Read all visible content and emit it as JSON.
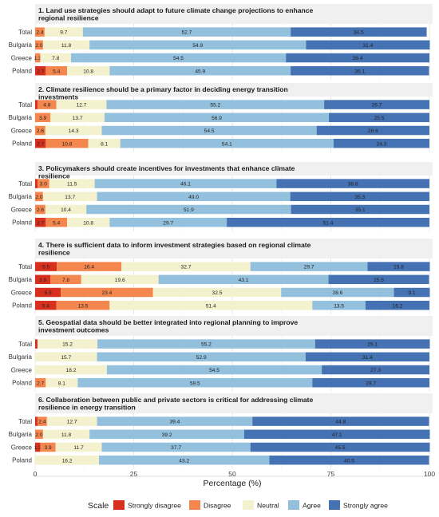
{
  "chart_data": {
    "type": "bar",
    "orientation": "horizontal",
    "stacked": true,
    "xlabel": "Percentage (%)",
    "xlim": [
      0,
      100
    ],
    "xticks": [
      "0",
      "25",
      "50",
      "75",
      "100"
    ],
    "legend": {
      "title": "Scale",
      "position": "bottom",
      "items": [
        "Strongly disagree",
        "Disagree",
        "Neutral",
        "Agree",
        "Strongly agree"
      ]
    },
    "colors": {
      "Strongly disagree": "#d7301f",
      "Disagree": "#f4874e",
      "Neutral": "#f4f1cf",
      "Agree": "#93c0dd",
      "Strongly agree": "#4472b3"
    },
    "grid": true,
    "panels": [
      {
        "title": "1. Land use strategies should adapt to future climate change projections to enhance regional resilience",
        "rows": [
          {
            "category": "Total",
            "values": [
              0.0,
              2.4,
              9.7,
              52.7,
              34.5
            ],
            "labels": [
              "",
              "2.4",
              "9.7",
              "52.7",
              "34.5"
            ]
          },
          {
            "category": "Bulgaria",
            "values": [
              0.0,
              2.0,
              11.8,
              54.9,
              31.4
            ],
            "labels": [
              "",
              "2.0",
              "11.8",
              "54.9",
              "31.4"
            ]
          },
          {
            "category": "Greece",
            "values": [
              0.0,
              1.3,
              7.8,
              54.5,
              36.4
            ],
            "labels": [
              "",
              "1.3",
              "7.8",
              "54.5",
              "36.4"
            ]
          },
          {
            "category": "Poland",
            "values": [
              2.7,
              5.4,
              10.8,
              45.9,
              35.1
            ],
            "labels": [
              "2.7",
              "5.4",
              "10.8",
              "45.9",
              "35.1"
            ]
          }
        ]
      },
      {
        "title": "2. Climate resilience should be a primary factor in deciding energy transition investments",
        "rows": [
          {
            "category": "Total",
            "values": [
              0.6,
              4.8,
              12.7,
              55.2,
              26.7
            ],
            "labels": [
              "",
              "4.8",
              "12.7",
              "55.2",
              "26.7"
            ]
          },
          {
            "category": "Bulgaria",
            "values": [
              0.0,
              3.9,
              13.7,
              56.9,
              25.5
            ],
            "labels": [
              "",
              "3.9",
              "13.7",
              "56.9",
              "25.5"
            ]
          },
          {
            "category": "Greece",
            "values": [
              0.0,
              2.6,
              14.3,
              54.5,
              28.6
            ],
            "labels": [
              "",
              "2.6",
              "14.3",
              "54.5",
              "28.6"
            ]
          },
          {
            "category": "Poland",
            "values": [
              2.7,
              10.8,
              8.1,
              54.1,
              24.3
            ],
            "labels": [
              "2.7",
              "10.8",
              "8.1",
              "54.1",
              "24.3"
            ]
          }
        ]
      },
      {
        "title": "3. Policymakers should create incentives for investments that enhance climate resilience",
        "rows": [
          {
            "category": "Total",
            "values": [
              0.6,
              3.0,
              11.5,
              46.1,
              38.8
            ],
            "labels": [
              "",
              "3.0",
              "11.5",
              "46.1",
              "38.8"
            ]
          },
          {
            "category": "Bulgaria",
            "values": [
              0.0,
              2.0,
              13.7,
              49.0,
              35.3
            ],
            "labels": [
              "",
              "2.0",
              "13.7",
              "49.0",
              "35.3"
            ]
          },
          {
            "category": "Greece",
            "values": [
              0.0,
              2.6,
              10.4,
              51.9,
              35.1
            ],
            "labels": [
              "",
              "2.6",
              "10.4",
              "51.9",
              "35.1"
            ]
          },
          {
            "category": "Poland",
            "values": [
              2.7,
              5.4,
              10.8,
              29.7,
              51.4
            ],
            "labels": [
              "2.7",
              "5.4",
              "10.8",
              "29.7",
              "51.4"
            ]
          }
        ]
      },
      {
        "title": "4. There is sufficient data to inform investment strategies based on regional climate resilience",
        "rows": [
          {
            "category": "Total",
            "values": [
              5.5,
              16.4,
              32.7,
              29.7,
              15.8
            ],
            "labels": [
              "5.5",
              "16.4",
              "32.7",
              "29.7",
              "15.8"
            ]
          },
          {
            "category": "Bulgaria",
            "values": [
              3.9,
              7.8,
              19.6,
              43.1,
              25.5
            ],
            "labels": [
              "3.9",
              "7.8",
              "19.6",
              "43.1",
              "25.5"
            ]
          },
          {
            "category": "Greece",
            "values": [
              6.5,
              23.4,
              32.5,
              28.6,
              9.1
            ],
            "labels": [
              "6.5",
              "23.4",
              "32.5",
              "28.6",
              "9.1"
            ]
          },
          {
            "category": "Poland",
            "values": [
              5.4,
              13.5,
              51.4,
              13.5,
              16.2
            ],
            "labels": [
              "5.4",
              "13.5",
              "51.4",
              "13.5",
              "16.2"
            ]
          }
        ]
      },
      {
        "title": "5. Geospatial data should be better integrated into regional planning to improve investment outcomes",
        "rows": [
          {
            "category": "Total",
            "values": [
              0.6,
              0.0,
              15.2,
              55.2,
              29.1
            ],
            "labels": [
              "",
              "",
              "15.2",
              "55.2",
              "29.1"
            ]
          },
          {
            "category": "Bulgaria",
            "values": [
              0.0,
              0.0,
              15.7,
              52.9,
              31.4
            ],
            "labels": [
              "",
              "",
              "15.7",
              "52.9",
              "31.4"
            ]
          },
          {
            "category": "Greece",
            "values": [
              0.0,
              0.0,
              18.2,
              54.5,
              27.3
            ],
            "labels": [
              "",
              "",
              "18.2",
              "54.5",
              "27.3"
            ]
          },
          {
            "category": "Poland",
            "values": [
              0.0,
              2.7,
              8.1,
              59.5,
              29.7
            ],
            "labels": [
              "",
              "2.7",
              "8.1",
              "59.5",
              "29.7"
            ]
          }
        ]
      },
      {
        "title": "6. Collaboration between public and private sectors is critical for addressing climate resilience in energy transition",
        "rows": [
          {
            "category": "Total",
            "values": [
              0.6,
              2.4,
              12.7,
              39.4,
              44.8
            ],
            "labels": [
              "",
              "2.4",
              "12.7",
              "39.4",
              "44.8"
            ]
          },
          {
            "category": "Bulgaria",
            "values": [
              0.0,
              2.0,
              11.8,
              39.2,
              47.1
            ],
            "labels": [
              "",
              "2.0",
              "11.8",
              "39.2",
              "47.1"
            ]
          },
          {
            "category": "Greece",
            "values": [
              1.3,
              3.9,
              11.7,
              37.7,
              45.5
            ],
            "labels": [
              "1.3",
              "3.9",
              "11.7",
              "37.7",
              "45.5"
            ]
          },
          {
            "category": "Poland",
            "values": [
              0.0,
              0.0,
              16.2,
              43.2,
              40.5
            ],
            "labels": [
              "",
              "",
              "16.2",
              "43.2",
              "40.5"
            ]
          }
        ]
      }
    ]
  }
}
